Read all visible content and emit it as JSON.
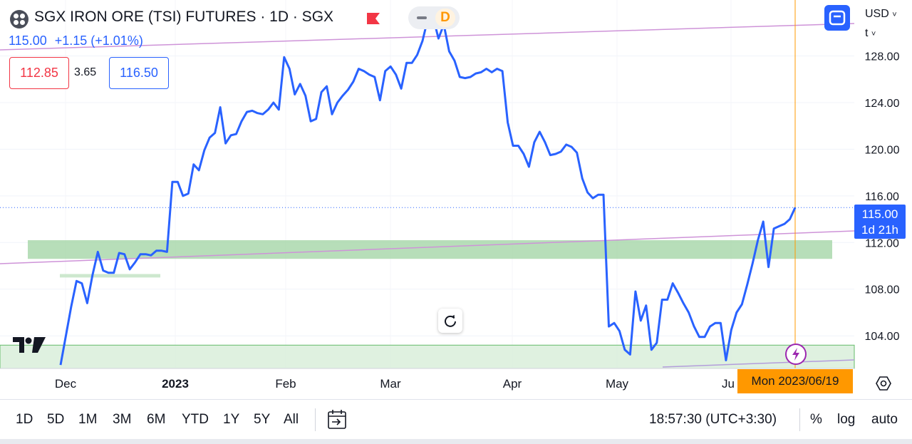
{
  "header": {
    "title": "SGX IRON ORE (TSI) FUTURES · 1D · SGX",
    "mode_letter": "D",
    "last_price": "115.00",
    "change": "+1.15 (+1.01%)"
  },
  "quote": {
    "bid": "112.85",
    "spread": "3.65",
    "ask": "116.50"
  },
  "top_right": {
    "currency": "USD",
    "unit": "t"
  },
  "price_label": {
    "value": "115.00",
    "countdown": "1d 21h"
  },
  "crosshair_date": "Mon 2023/06/19",
  "bottom": {
    "ranges": [
      "1D",
      "5D",
      "1M",
      "3M",
      "6M",
      "YTD",
      "1Y",
      "5Y",
      "All"
    ],
    "clock": "18:57:30 (UTC+3:30)",
    "percent": "%",
    "log": "log",
    "auto": "auto"
  },
  "colors": {
    "line": "#2962ff",
    "trendline": "#ce93d8",
    "zone": "#a5d6a7",
    "crosshair": "#ff9800"
  },
  "chart_data": {
    "type": "line",
    "series": [
      {
        "values": [
          [
            0,
            101.5
          ],
          [
            2,
            106.5
          ],
          [
            3,
            108.7
          ],
          [
            4,
            108.5
          ],
          [
            5,
            106.8
          ],
          [
            6,
            109.2
          ],
          [
            7,
            111.2
          ],
          [
            8,
            109.6
          ],
          [
            9,
            109.4
          ],
          [
            10,
            109.4
          ],
          [
            11,
            111.1
          ],
          [
            12,
            111.0
          ],
          [
            13,
            109.7
          ],
          [
            14,
            110.3
          ],
          [
            15,
            111.0
          ],
          [
            16,
            111.0
          ],
          [
            17,
            110.9
          ],
          [
            18,
            111.3
          ],
          [
            19,
            111.3
          ],
          [
            20,
            111.2
          ],
          [
            21,
            117.2
          ],
          [
            22,
            117.2
          ],
          [
            23,
            116.0
          ],
          [
            24,
            116.2
          ],
          [
            25,
            118.7
          ],
          [
            26,
            118.2
          ],
          [
            27,
            119.9
          ],
          [
            28,
            121.0
          ],
          [
            29,
            121.4
          ],
          [
            30,
            123.6
          ],
          [
            31,
            120.5
          ],
          [
            32,
            121.2
          ],
          [
            33,
            121.3
          ],
          [
            34,
            122.4
          ],
          [
            35,
            123.2
          ],
          [
            36,
            123.3
          ],
          [
            37,
            123.1
          ],
          [
            38,
            123.0
          ],
          [
            39,
            123.4
          ],
          [
            40,
            124.0
          ],
          [
            41,
            123.4
          ],
          [
            42,
            127.9
          ],
          [
            43,
            126.9
          ],
          [
            44,
            124.7
          ],
          [
            45,
            125.6
          ],
          [
            46,
            124.6
          ],
          [
            47,
            122.4
          ],
          [
            48,
            122.6
          ],
          [
            49,
            124.9
          ],
          [
            50,
            125.4
          ],
          [
            51,
            123.0
          ],
          [
            52,
            124.0
          ],
          [
            53,
            124.6
          ],
          [
            54,
            125.1
          ],
          [
            55,
            125.8
          ],
          [
            56,
            126.9
          ],
          [
            57,
            126.7
          ],
          [
            58,
            126.4
          ],
          [
            59,
            126.2
          ],
          [
            60,
            124.2
          ],
          [
            61,
            126.7
          ],
          [
            62,
            127.1
          ],
          [
            63,
            126.4
          ],
          [
            64,
            125.2
          ],
          [
            65,
            127.4
          ],
          [
            66,
            127.4
          ],
          [
            67,
            128.1
          ],
          [
            68,
            129.3
          ],
          [
            69,
            131.2
          ],
          [
            70,
            131.3
          ],
          [
            71,
            129.5
          ],
          [
            72,
            130.7
          ],
          [
            73,
            128.4
          ],
          [
            74,
            127.6
          ],
          [
            75,
            126.2
          ],
          [
            76,
            126.1
          ],
          [
            77,
            126.2
          ],
          [
            78,
            126.5
          ],
          [
            79,
            126.6
          ],
          [
            80,
            126.9
          ],
          [
            81,
            126.6
          ],
          [
            82,
            126.9
          ],
          [
            83,
            126.7
          ],
          [
            84,
            122.3
          ],
          [
            85,
            120.3
          ],
          [
            86,
            120.3
          ],
          [
            87,
            119.6
          ],
          [
            88,
            118.5
          ],
          [
            89,
            120.6
          ],
          [
            90,
            121.5
          ],
          [
            91,
            120.6
          ],
          [
            92,
            119.5
          ],
          [
            93,
            119.6
          ],
          [
            94,
            119.8
          ],
          [
            95,
            120.4
          ],
          [
            96,
            120.2
          ],
          [
            97,
            119.7
          ],
          [
            98,
            117.5
          ],
          [
            99,
            116.3
          ],
          [
            100,
            115.8
          ],
          [
            101,
            116.1
          ],
          [
            102,
            116.1
          ],
          [
            103,
            104.8
          ],
          [
            104,
            105.1
          ],
          [
            105,
            104.4
          ],
          [
            106,
            102.8
          ],
          [
            107,
            102.4
          ],
          [
            108,
            107.8
          ],
          [
            109,
            105.3
          ],
          [
            110,
            106.6
          ],
          [
            111,
            102.8
          ],
          [
            112,
            103.4
          ],
          [
            113,
            107.1
          ],
          [
            114,
            107.1
          ],
          [
            115,
            108.5
          ],
          [
            116,
            107.7
          ],
          [
            117,
            106.8
          ],
          [
            118,
            106.0
          ],
          [
            119,
            104.8
          ],
          [
            120,
            103.9
          ],
          [
            121,
            103.9
          ],
          [
            122,
            104.8
          ],
          [
            123,
            105.1
          ],
          [
            124,
            105.1
          ],
          [
            125,
            101.9
          ],
          [
            126,
            104.5
          ],
          [
            127,
            106.0
          ],
          [
            128,
            106.7
          ],
          [
            129,
            108.4
          ],
          [
            130,
            110.2
          ],
          [
            131,
            112.2
          ],
          [
            132,
            113.8
          ],
          [
            133,
            109.9
          ],
          [
            134,
            113.2
          ],
          [
            135,
            113.4
          ],
          [
            136,
            113.6
          ],
          [
            137,
            114.0
          ],
          [
            138,
            115.0
          ]
        ]
      }
    ],
    "x_labels": [
      "Dec",
      "2023",
      "Feb",
      "Mar",
      "Apr",
      "May",
      "Ju"
    ],
    "y_ticks": [
      "104.00",
      "108.00",
      "112.00",
      "116.00",
      "120.00",
      "124.00",
      "128.00"
    ],
    "ylim": [
      101.2,
      132.8
    ],
    "zones": [
      {
        "from": 110.6,
        "to": 112.2
      },
      {
        "from": 109.0,
        "to": 109.3
      },
      {
        "from": 101.2,
        "to": 103.2
      }
    ],
    "last_value": 115.0
  }
}
